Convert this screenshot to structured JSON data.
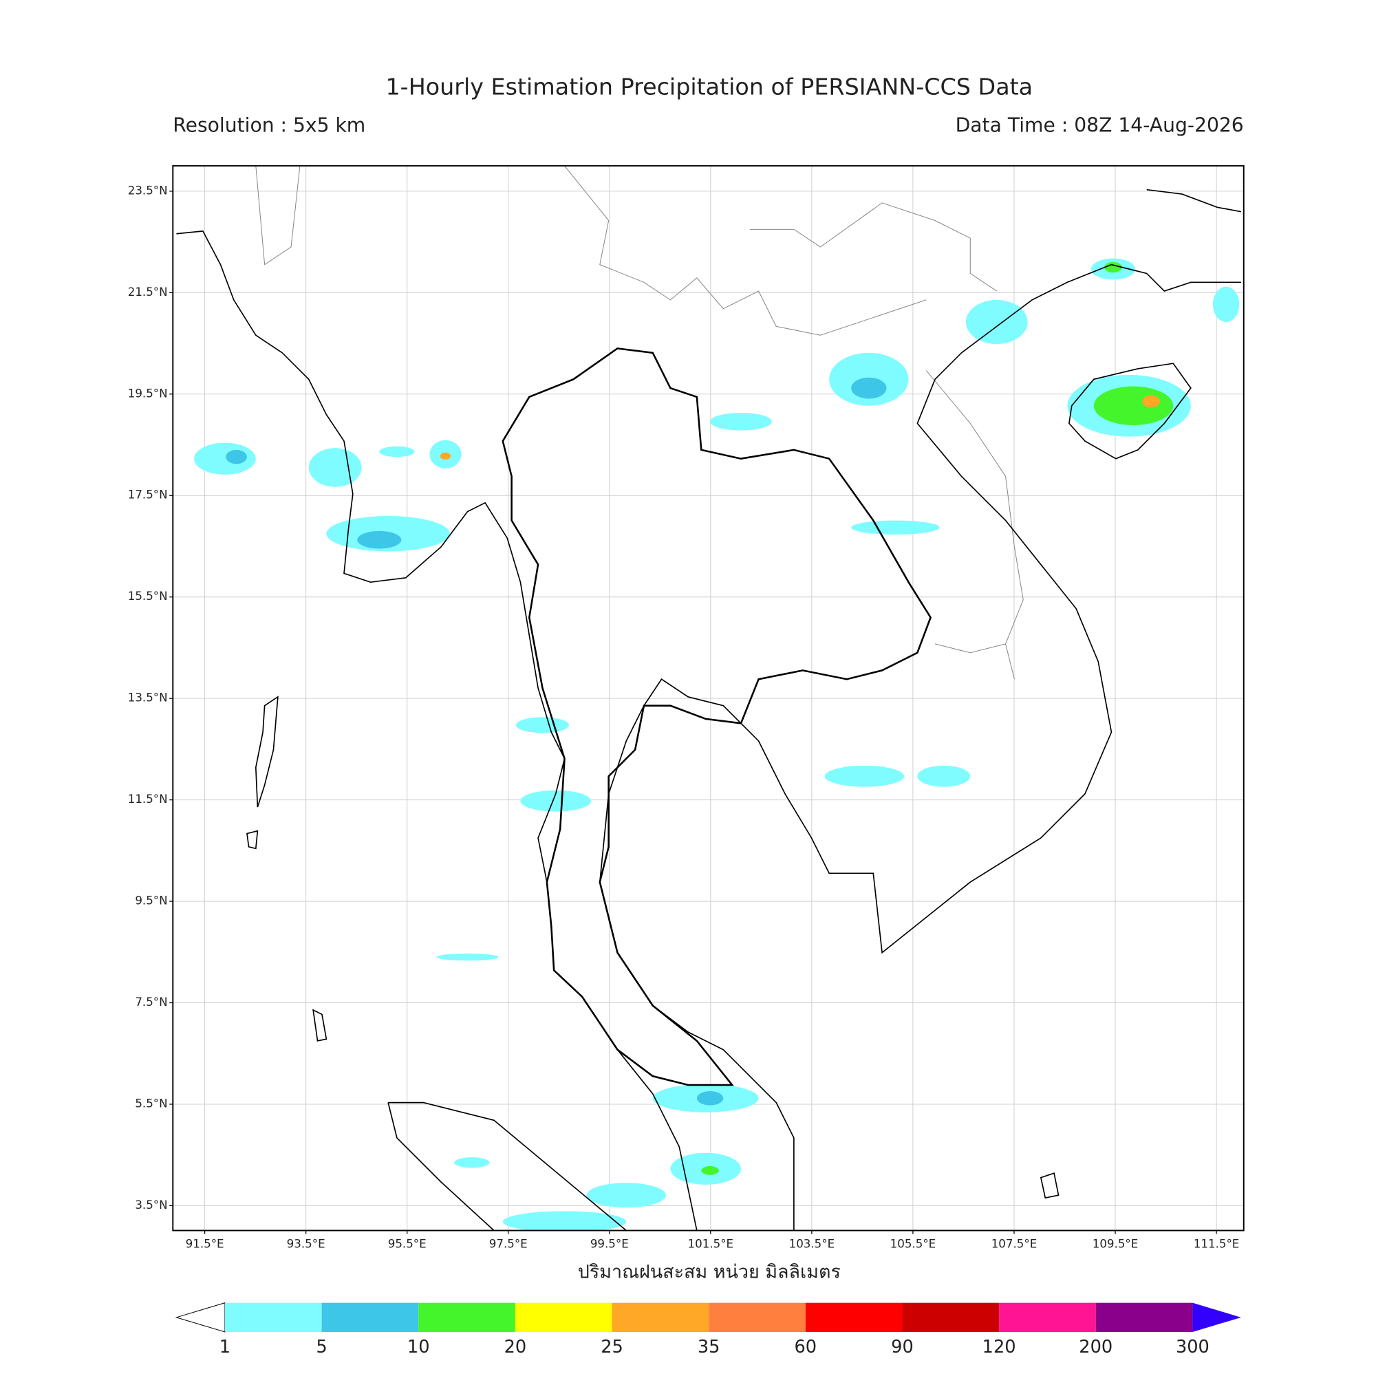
{
  "header": {
    "title": "1-Hourly Estimation Precipitation of PERSIANN-CCS Data",
    "resolution": "Resolution : 5x5 km",
    "data_time": "Data Time : 08Z 14-Aug-2026"
  },
  "map": {
    "lonlim": [
      90.87,
      112.04
    ],
    "latlim": [
      3.01,
      24.0
    ],
    "grid": true,
    "lon_ticks": [
      {
        "value": 91.5,
        "label": "91.5°E"
      },
      {
        "value": 93.5,
        "label": "93.5°E"
      },
      {
        "value": 95.5,
        "label": "95.5°E"
      },
      {
        "value": 97.5,
        "label": "97.5°E"
      },
      {
        "value": 99.5,
        "label": "99.5°E"
      },
      {
        "value": 101.5,
        "label": "101.5°E"
      },
      {
        "value": 103.5,
        "label": "103.5°E"
      },
      {
        "value": 105.5,
        "label": "105.5°E"
      },
      {
        "value": 107.5,
        "label": "107.5°E"
      },
      {
        "value": 109.5,
        "label": "109.5°E"
      },
      {
        "value": 111.5,
        "label": "111.5°E"
      }
    ],
    "lat_ticks": [
      {
        "value": 23.5,
        "label": "23.5°N"
      },
      {
        "value": 21.5,
        "label": "21.5°N"
      },
      {
        "value": 19.5,
        "label": "19.5°N"
      },
      {
        "value": 17.5,
        "label": "17.5°N"
      },
      {
        "value": 15.5,
        "label": "15.5°N"
      },
      {
        "value": 13.5,
        "label": "13.5°N"
      },
      {
        "value": 11.5,
        "label": "11.5°N"
      },
      {
        "value": 9.5,
        "label": "9.5°N"
      },
      {
        "value": 7.5,
        "label": "7.5°N"
      },
      {
        "value": 5.5,
        "label": "5.5°N"
      },
      {
        "value": 3.5,
        "label": "3.5°N"
      }
    ],
    "x_label": "ปริมาณฝนสะสม หน่วย มิลลิเมตร"
  },
  "colorbar": {
    "levels": [
      1,
      5,
      10,
      20,
      25,
      35,
      60,
      90,
      120,
      200,
      300
    ],
    "colors": [
      "#7ffcff",
      "#3ec6e8",
      "#44f52b",
      "#ffff00",
      "#ffa726",
      "#ff7f3f",
      "#ff0000",
      "#cc0000",
      "#ff1493",
      "#8b008b"
    ],
    "under_color": "#ffffff",
    "over_color": "#3300ff"
  }
}
